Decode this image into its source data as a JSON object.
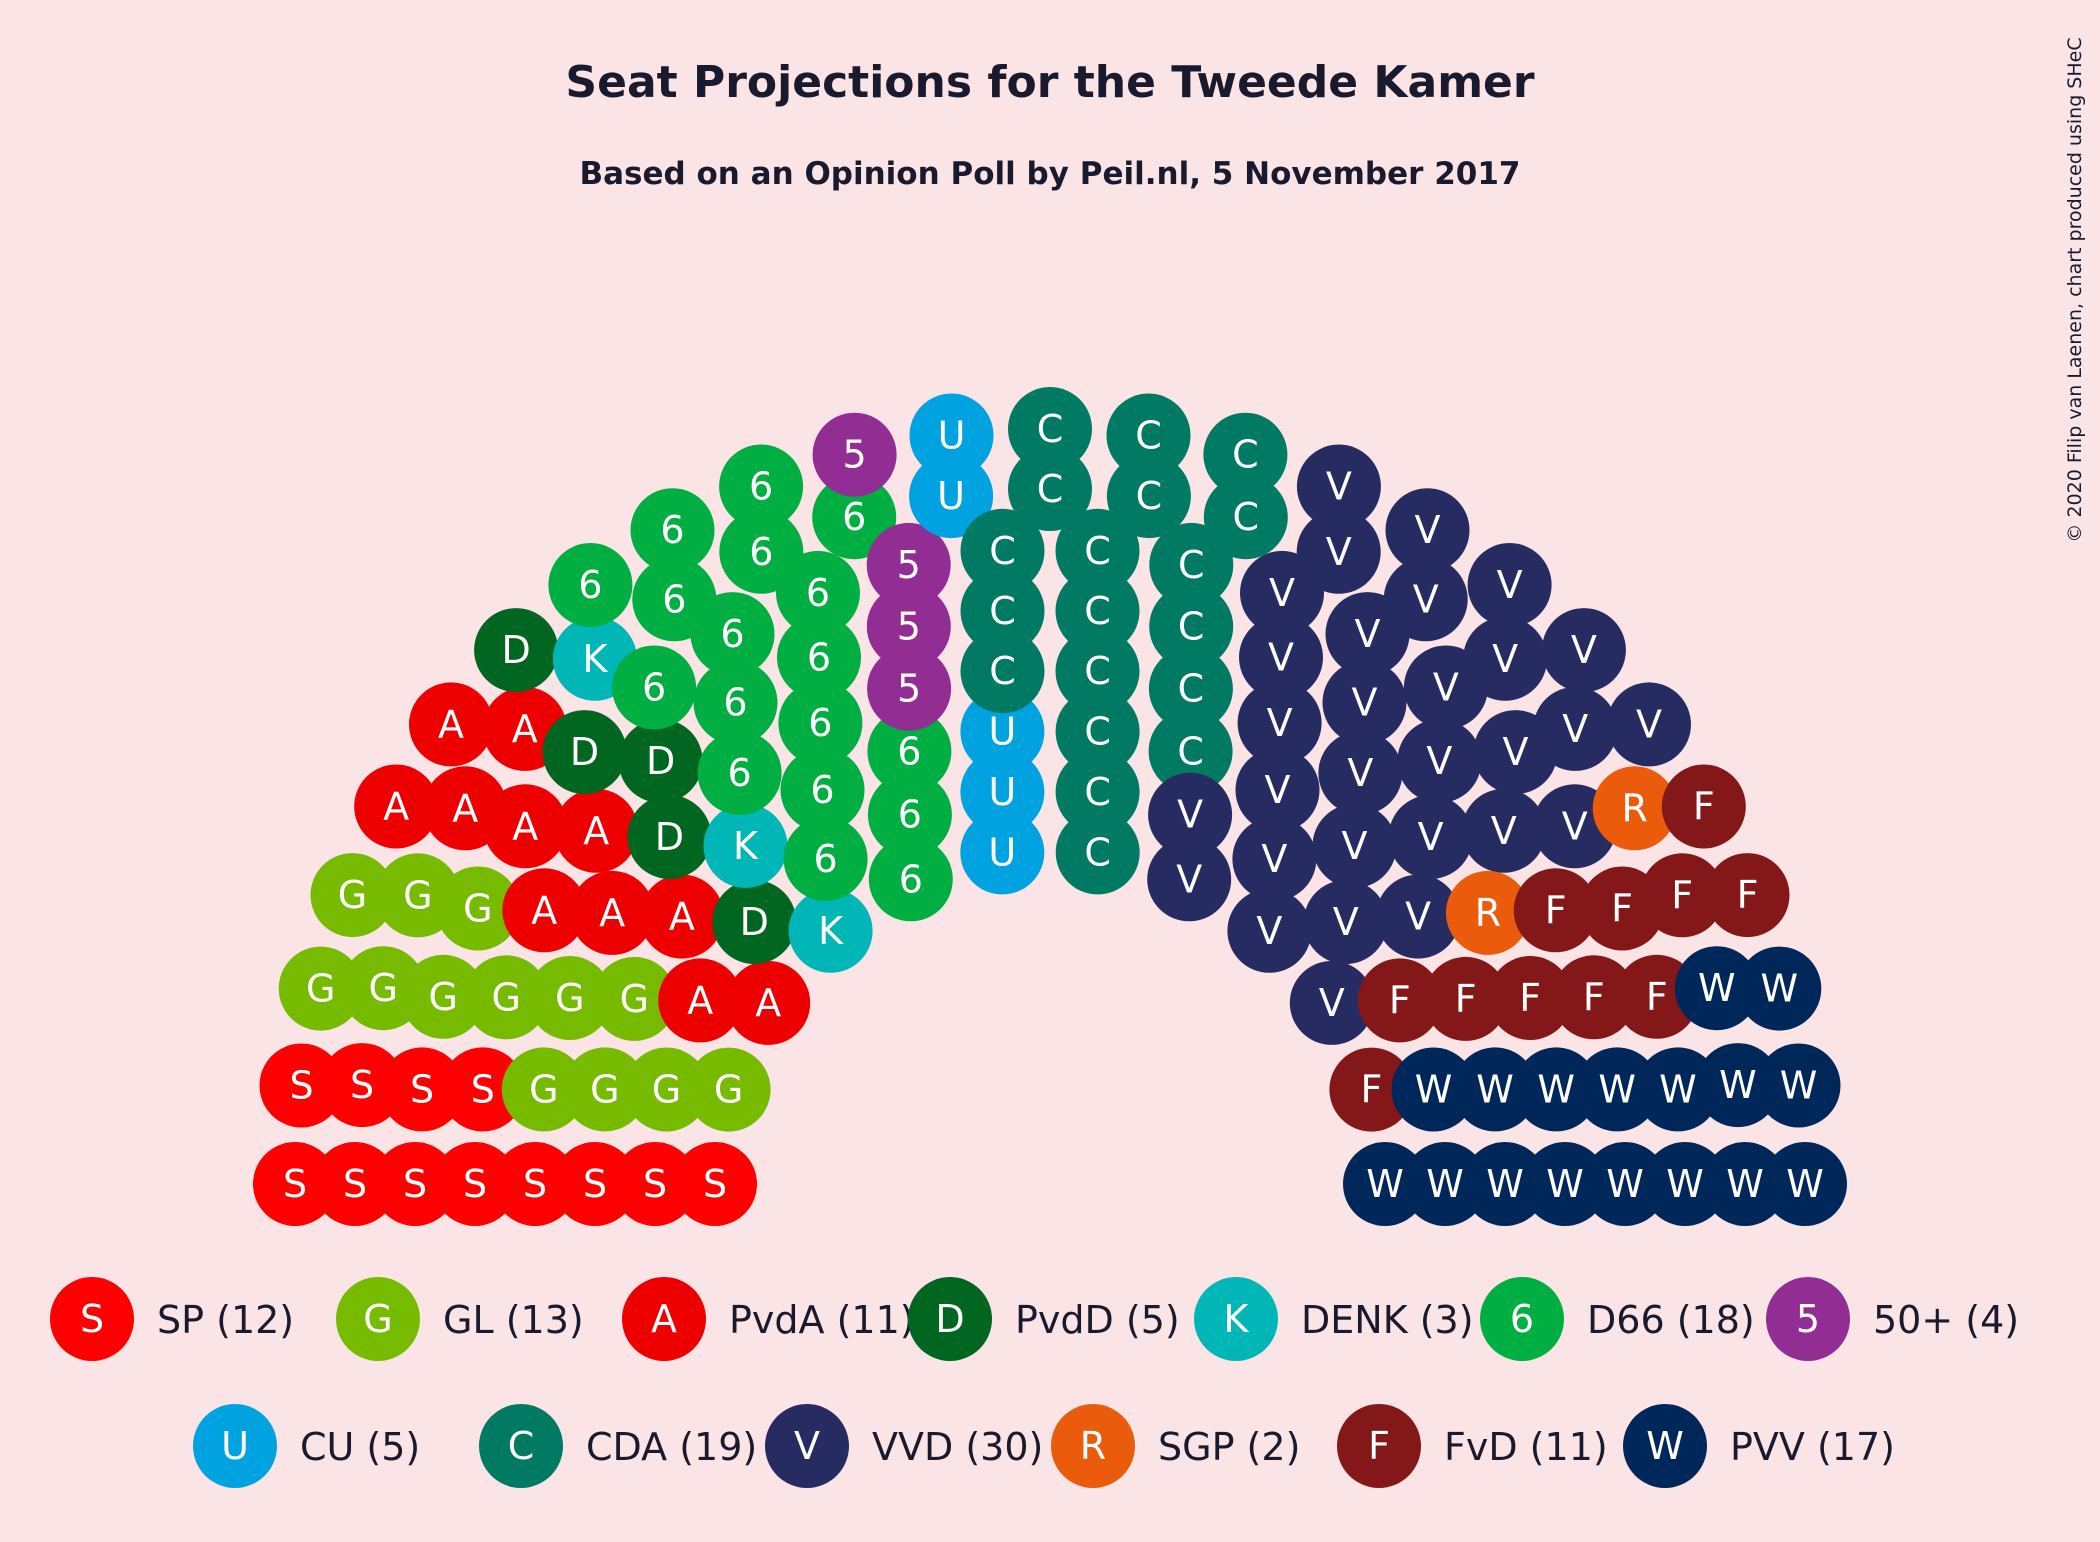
{
  "title": "Seat Projections for the Tweede Kamer",
  "subtitle": "Based on an Opinion Poll by Peil.nl, 5 November 2017",
  "credit": "© 2020 Filip van Laenen, chart produced using SHeC",
  "chart_data": {
    "type": "parliament",
    "total_seats": 150,
    "parties": [
      {
        "name": "SP",
        "seats": 12,
        "letter": "S",
        "color": "#ff0000",
        "label": "SP (12)"
      },
      {
        "name": "GL",
        "seats": 13,
        "letter": "G",
        "color": "#77bb00",
        "label": "GL (13)"
      },
      {
        "name": "PvdA",
        "seats": 11,
        "letter": "A",
        "color": "#ee0000",
        "label": "PvdA (11)"
      },
      {
        "name": "PvdD",
        "seats": 5,
        "letter": "D",
        "color": "#006620",
        "label": "PvdD (5)"
      },
      {
        "name": "DENK",
        "seats": 3,
        "letter": "K",
        "color": "#00b6b6",
        "label": "DENK (3)"
      },
      {
        "name": "D66",
        "seats": 18,
        "letter": "6",
        "color": "#00ae41",
        "label": "D66 (18)"
      },
      {
        "name": "50+",
        "seats": 4,
        "letter": "5",
        "color": "#922d93",
        "label": "50+ (4)"
      },
      {
        "name": "CU",
        "seats": 5,
        "letter": "U",
        "color": "#00a3e0",
        "label": "CU (5)"
      },
      {
        "name": "CDA",
        "seats": 19,
        "letter": "C",
        "color": "#007a62",
        "label": "CDA (19)"
      },
      {
        "name": "VVD",
        "seats": 30,
        "letter": "V",
        "color": "#262b61",
        "label": "VVD (30)"
      },
      {
        "name": "SGP",
        "seats": 2,
        "letter": "R",
        "color": "#ea5b0c",
        "label": "SGP (2)"
      },
      {
        "name": "FvD",
        "seats": 11,
        "letter": "F",
        "color": "#841818",
        "label": "FvD (11)"
      },
      {
        "name": "PVV",
        "seats": 17,
        "letter": "W",
        "color": "#002759",
        "label": "PVV (17)"
      }
    ]
  }
}
